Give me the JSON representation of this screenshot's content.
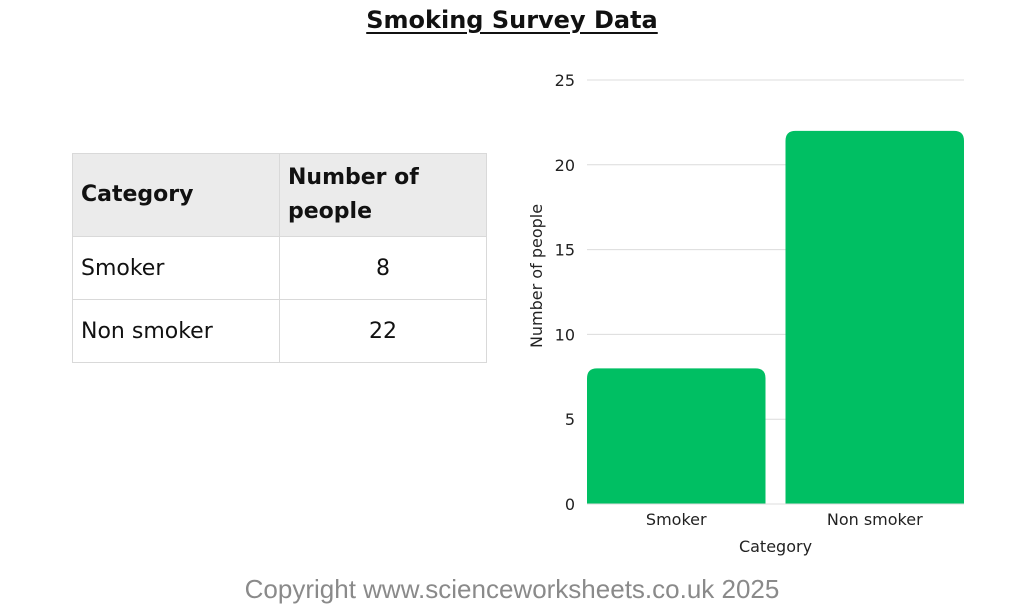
{
  "page": {
    "title": "Smoking Survey Data",
    "copyright": "Copyright www.scienceworksheets.co.uk 2025"
  },
  "table": {
    "headers": [
      "Category",
      "Number of people"
    ],
    "rows": [
      [
        "Smoker",
        "8"
      ],
      [
        "Non smoker",
        "22"
      ]
    ]
  },
  "chart_data": {
    "type": "bar",
    "categories": [
      "Smoker",
      "Non smoker"
    ],
    "values": [
      8,
      22
    ],
    "xlabel": "Category",
    "ylabel": "Number of people",
    "ylim": [
      0,
      25
    ],
    "yticks": [
      0,
      5,
      10,
      15,
      20,
      25
    ],
    "grid": true,
    "bar_color": "#00bf63",
    "grid_color": "#dcdcdc"
  }
}
